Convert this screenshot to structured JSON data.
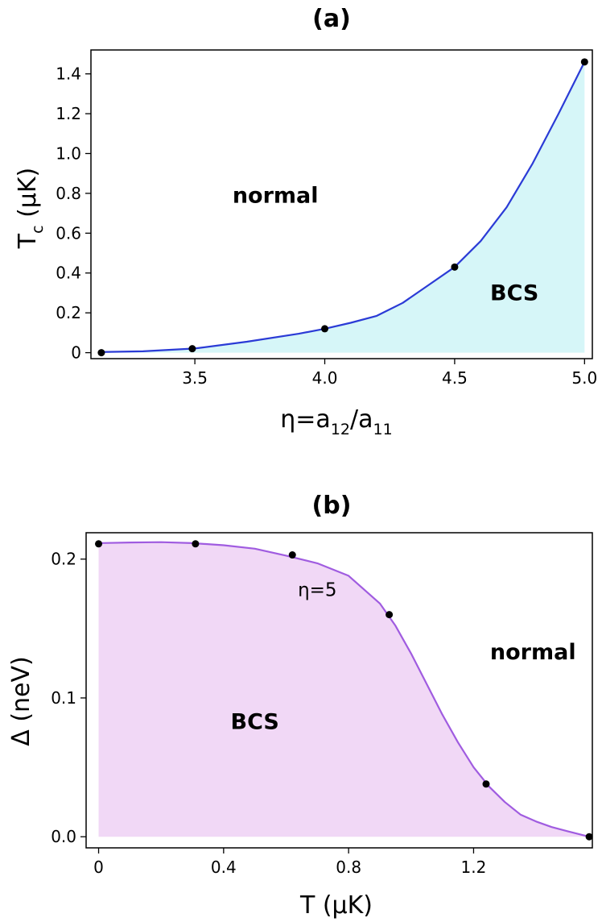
{
  "chart_data": [
    {
      "type": "area",
      "title": "(a)",
      "xlabel": "η=a12/a11",
      "xlabel_parts": {
        "main": "η=a",
        "sub1": "12",
        "mid": "/a",
        "sub2": "11"
      },
      "ylabel": "Tc (μK)",
      "ylabel_parts": {
        "main": "T",
        "sub": "c",
        "unit": " (μK)"
      },
      "xlim": [
        3.1,
        5.03
      ],
      "ylim": [
        -0.03,
        1.52
      ],
      "xticks": [
        3.5,
        4.0,
        4.5,
        5.0
      ],
      "xtick_labels": [
        "3.5",
        "4.0",
        "4.5",
        "5.0"
      ],
      "yticks": [
        0,
        0.2,
        0.4,
        0.6,
        0.8,
        1.0,
        1.2,
        1.4
      ],
      "ytick_labels": [
        "0",
        "0.2",
        "0.4",
        "0.6",
        "0.8",
        "1.0",
        "1.2",
        "1.4"
      ],
      "grid": false,
      "colors": {
        "line": "#2b3bd6",
        "fill": "#d6f6f8",
        "points": "#000000"
      },
      "regions": [
        {
          "label": "normal",
          "x": 3.81,
          "y": 0.79
        },
        {
          "label": "BCS",
          "x": 4.73,
          "y": 0.3
        }
      ],
      "curve": {
        "x": [
          3.14,
          3.3,
          3.5,
          3.7,
          3.9,
          4.0,
          4.1,
          4.2,
          4.3,
          4.4,
          4.5,
          4.6,
          4.7,
          4.8,
          4.9,
          5.0
        ],
        "y": [
          0.003,
          0.007,
          0.021,
          0.055,
          0.095,
          0.12,
          0.15,
          0.185,
          0.25,
          0.34,
          0.43,
          0.56,
          0.73,
          0.95,
          1.2,
          1.46
        ]
      },
      "points": {
        "x": [
          3.14,
          3.49,
          4.0,
          4.5,
          5.0
        ],
        "y": [
          0.0,
          0.02,
          0.12,
          0.43,
          1.46
        ]
      }
    },
    {
      "type": "area",
      "title": "(b)",
      "xlabel": "T (μK)",
      "ylabel": "Δ  (neV)",
      "xlim": [
        -0.04,
        1.58
      ],
      "ylim": [
        -0.008,
        0.219
      ],
      "xticks": [
        0,
        0.4,
        0.8,
        1.2
      ],
      "xtick_labels": [
        "0",
        "0.4",
        "0.8",
        "1.2"
      ],
      "yticks": [
        0.0,
        0.1,
        0.2
      ],
      "ytick_labels": [
        "0.0",
        "0.1",
        "0.2"
      ],
      "grid": false,
      "colors": {
        "line": "#a05ce0",
        "fill": "#f1d8f6",
        "points": "#000000"
      },
      "regions": [
        {
          "label": "normal",
          "x": 1.39,
          "y": 0.133
        },
        {
          "label": "BCS",
          "x": 0.5,
          "y": 0.083
        }
      ],
      "annotation": {
        "label": "η=5",
        "x": 0.7,
        "y": 0.178
      },
      "curve": {
        "x": [
          0.0,
          0.1,
          0.2,
          0.3,
          0.4,
          0.5,
          0.6,
          0.7,
          0.8,
          0.9,
          0.95,
          1.0,
          1.05,
          1.1,
          1.15,
          1.2,
          1.25,
          1.3,
          1.35,
          1.4,
          1.45,
          1.5,
          1.57
        ],
        "y": [
          0.2115,
          0.212,
          0.2122,
          0.2115,
          0.21,
          0.2075,
          0.2025,
          0.197,
          0.188,
          0.168,
          0.152,
          0.132,
          0.11,
          0.088,
          0.068,
          0.05,
          0.036,
          0.025,
          0.016,
          0.011,
          0.007,
          0.004,
          0.0
        ]
      },
      "points": {
        "x": [
          0.0,
          0.31,
          0.62,
          0.93,
          1.24,
          1.57
        ],
        "y": [
          0.211,
          0.211,
          0.203,
          0.16,
          0.038,
          0.0
        ]
      }
    }
  ]
}
